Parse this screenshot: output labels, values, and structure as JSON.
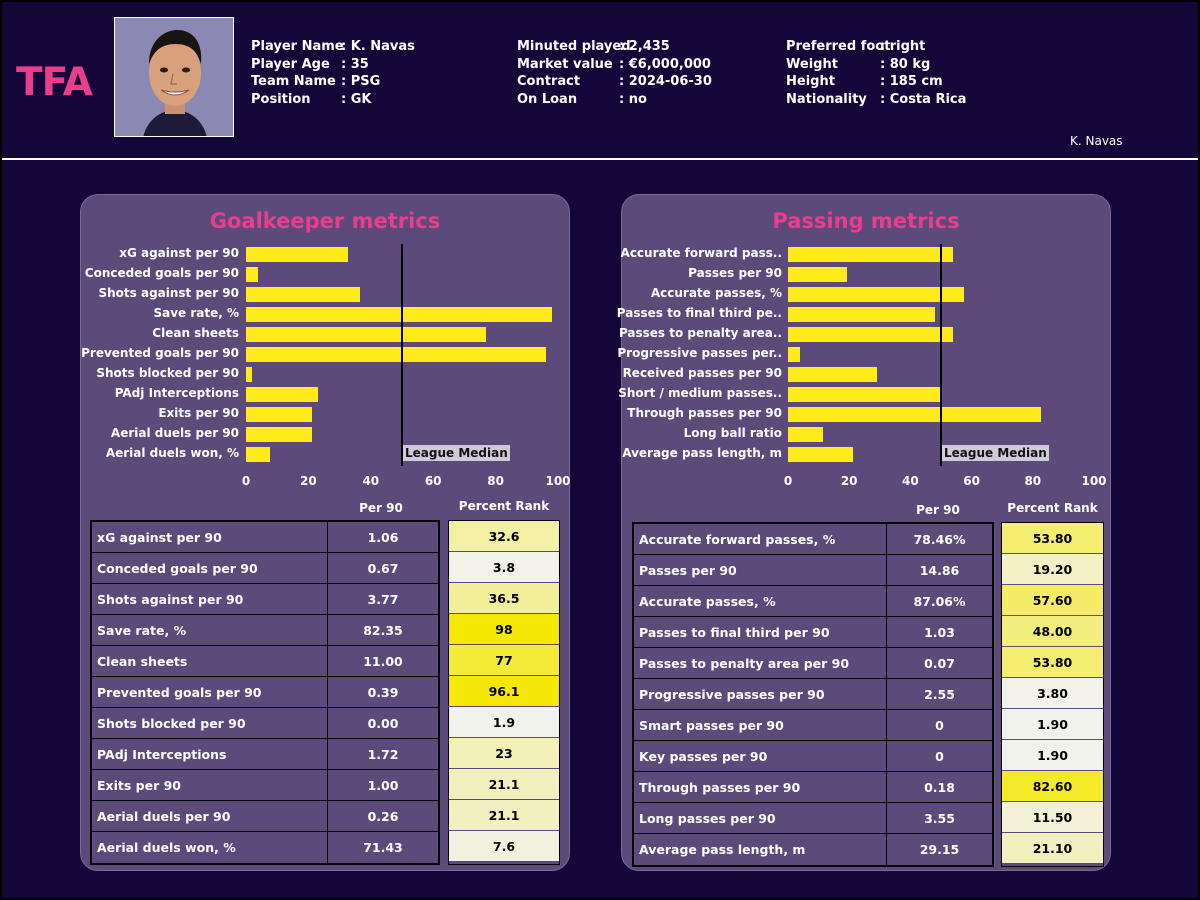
{
  "logo": "TFA",
  "player": {
    "col1": [
      {
        "label": "Player Name",
        "value": ": K. Navas"
      },
      {
        "label": "Player Age",
        "value": ": 35"
      },
      {
        "label": "Team Name",
        "value": ": PSG"
      },
      {
        "label": "Position",
        "value": ": GK"
      }
    ],
    "col2": [
      {
        "label": "Minuted played",
        "value": ": 2,435"
      },
      {
        "label": "Market value",
        "value": ": €6,000,000"
      },
      {
        "label": "Contract",
        "value": ": 2024-06-30"
      },
      {
        "label": "On Loan",
        "value": ": no"
      }
    ],
    "col3": [
      {
        "label": "Preferred foot",
        "value": ": right"
      },
      {
        "label": "Weight",
        "value": ": 80 kg"
      },
      {
        "label": "Height",
        "value": ": 185 cm"
      },
      {
        "label": "Nationality",
        "value": ": Costa Rica"
      }
    ],
    "short_name": "K. Navas"
  },
  "colors": {
    "bar": "#ffeb1a",
    "title": "#e83e8c",
    "panel": "#5b4a7a",
    "background": "#15063a"
  },
  "chart_data": [
    {
      "type": "bar",
      "orientation": "horizontal",
      "title": "Goalkeeper metrics",
      "xlim": [
        0,
        100
      ],
      "xticks": [
        0,
        20,
        40,
        60,
        80,
        100
      ],
      "median": 50,
      "median_label": "League Median",
      "per90_header": "Per 90",
      "rank_header": "Percent Rank",
      "bar_categories": [
        "xG against per 90",
        "Conceded goals per 90",
        "Shots against per 90",
        "Save rate, %",
        "Clean sheets",
        "Prevented goals per 90",
        "Shots blocked per 90",
        "PAdj Interceptions",
        "Exits per 90",
        "Aerial duels per 90",
        "Aerial duels won, %"
      ],
      "bar_values": [
        32.6,
        3.8,
        36.5,
        98,
        77,
        96.1,
        1.9,
        23,
        21.1,
        21.1,
        7.6
      ],
      "table": [
        {
          "metric": "xG against per 90",
          "per90": "1.06",
          "rank": "32.6",
          "rank_value": 32.6
        },
        {
          "metric": "Conceded goals per 90",
          "per90": "0.67",
          "rank": "3.8",
          "rank_value": 3.8
        },
        {
          "metric": "Shots against per 90",
          "per90": "3.77",
          "rank": "36.5",
          "rank_value": 36.5
        },
        {
          "metric": "Save rate, %",
          "per90": "82.35",
          "rank": "98",
          "rank_value": 98
        },
        {
          "metric": "Clean sheets",
          "per90": "11.00",
          "rank": "77",
          "rank_value": 77
        },
        {
          "metric": "Prevented goals per 90",
          "per90": "0.39",
          "rank": "96.1",
          "rank_value": 96.1
        },
        {
          "metric": "Shots blocked per 90",
          "per90": "0.00",
          "rank": "1.9",
          "rank_value": 1.9
        },
        {
          "metric": "PAdj Interceptions",
          "per90": "1.72",
          "rank": "23",
          "rank_value": 23
        },
        {
          "metric": "Exits per 90",
          "per90": "1.00",
          "rank": "21.1",
          "rank_value": 21.1
        },
        {
          "metric": "Aerial duels per 90",
          "per90": "0.26",
          "rank": "21.1",
          "rank_value": 21.1
        },
        {
          "metric": "Aerial duels won, %",
          "per90": "71.43",
          "rank": "7.6",
          "rank_value": 7.6
        }
      ]
    },
    {
      "type": "bar",
      "orientation": "horizontal",
      "title": "Passing metrics",
      "xlim": [
        0,
        100
      ],
      "xticks": [
        0,
        20,
        40,
        60,
        80,
        100
      ],
      "median": 50,
      "median_label": "League Median",
      "per90_header": "Per 90",
      "rank_header": "Percent Rank",
      "bar_categories": [
        "Accurate forward pass..",
        "Passes per 90",
        "Accurate passes, %",
        "Passes to final third pe..",
        "Passes to penalty area..",
        "Progressive passes per..",
        "Received passes per 90",
        "Short / medium passes..",
        "Through passes per 90",
        "Long ball ratio",
        "Average pass length, m"
      ],
      "bar_values": [
        53.8,
        19.2,
        57.6,
        48.0,
        53.8,
        3.8,
        29,
        50,
        82.6,
        11.5,
        21.1
      ],
      "table": [
        {
          "metric": "Accurate forward passes, %",
          "per90": "78.46%",
          "rank": "53.80",
          "rank_value": 53.8
        },
        {
          "metric": "Passes per 90",
          "per90": "14.86",
          "rank": "19.20",
          "rank_value": 19.2
        },
        {
          "metric": "Accurate passes, %",
          "per90": "87.06%",
          "rank": "57.60",
          "rank_value": 57.6
        },
        {
          "metric": "Passes to final third per 90",
          "per90": "1.03",
          "rank": "48.00",
          "rank_value": 48.0
        },
        {
          "metric": "Passes to penalty area per 90",
          "per90": "0.07",
          "rank": "53.80",
          "rank_value": 53.8
        },
        {
          "metric": "Progressive passes per 90",
          "per90": "2.55",
          "rank": "3.80",
          "rank_value": 3.8
        },
        {
          "metric": "Smart passes per 90",
          "per90": "0",
          "rank": "1.90",
          "rank_value": 1.9
        },
        {
          "metric": "Key passes per 90",
          "per90": "0",
          "rank": "1.90",
          "rank_value": 1.9
        },
        {
          "metric": "Through passes per 90",
          "per90": "0.18",
          "rank": "82.60",
          "rank_value": 82.6
        },
        {
          "metric": "Long passes per 90",
          "per90": "3.55",
          "rank": "11.50",
          "rank_value": 11.5
        },
        {
          "metric": "Average pass length, m",
          "per90": "29.15",
          "rank": "21.10",
          "rank_value": 21.1
        }
      ]
    }
  ]
}
